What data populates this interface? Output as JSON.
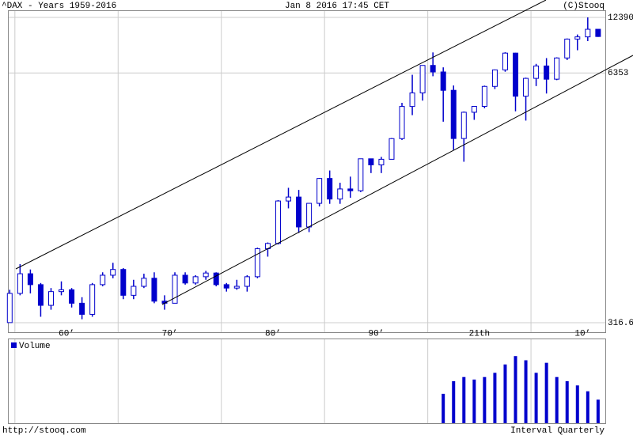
{
  "chart_data": [
    {
      "type": "candlestick",
      "title": "^DAX - Years 1959-2016",
      "subtitle": "Jan 8 2016 17:45 CET",
      "source": "(C)Stooq",
      "color": "#0000cc",
      "log_scale": true,
      "grid": true,
      "x": [
        1959,
        1960,
        1961,
        1962,
        1963,
        1964,
        1965,
        1966,
        1967,
        1968,
        1969,
        1970,
        1971,
        1972,
        1973,
        1974,
        1975,
        1976,
        1977,
        1978,
        1979,
        1980,
        1981,
        1982,
        1983,
        1984,
        1985,
        1986,
        1987,
        1988,
        1989,
        1990,
        1991,
        1992,
        1993,
        1994,
        1995,
        1996,
        1997,
        1998,
        1999,
        2000,
        2001,
        2002,
        2003,
        2004,
        2005,
        2006,
        2007,
        2008,
        2009,
        2010,
        2011,
        2012,
        2013,
        2014,
        2015,
        2016
      ],
      "open": [
        317,
        450,
        570,
        500,
        390,
        460,
        470,
        400,
        350,
        500,
        560,
        600,
        440,
        490,
        540,
        410,
        400,
        560,
        510,
        550,
        575,
        500,
        480,
        490,
        550,
        770,
        820,
        1366,
        1432,
        1000,
        1328,
        1790,
        1398,
        1578,
        1545,
        2267,
        2107,
        2254,
        2889,
        4250,
        5002,
        6958,
        6434,
        5160,
        2893,
        3965,
        4256,
        5408,
        6597,
        8067,
        4810,
        5957,
        6914,
        5898,
        7612,
        9552,
        9806,
        10743
      ],
      "high": [
        470,
        640,
        600,
        510,
        480,
        520,
        480,
        430,
        510,
        580,
        650,
        610,
        530,
        570,
        580,
        440,
        580,
        580,
        560,
        590,
        580,
        510,
        530,
        560,
        780,
        830,
        1380,
        1600,
        1560,
        1330,
        1800,
        1970,
        1700,
        1830,
        2270,
        2270,
        2320,
        2910,
        4440,
        6220,
        6960,
        8136,
        6800,
        5470,
        4000,
        4260,
        5460,
        6630,
        8151,
        8100,
        6010,
        7090,
        7600,
        7670,
        9620,
        10090,
        12390,
        10760
      ],
      "low": [
        316.6,
        440,
        450,
        340,
        370,
        440,
        380,
        330,
        340,
        490,
        540,
        420,
        420,
        480,
        400,
        370,
        400,
        500,
        500,
        530,
        490,
        460,
        470,
        460,
        540,
        700,
        810,
        1250,
        930,
        940,
        1280,
        1320,
        1320,
        1420,
        1520,
        1910,
        1910,
        2250,
        2840,
        3830,
        4560,
        6110,
        3540,
        2520,
        2188,
        3620,
        4160,
        5240,
        6450,
        4010,
        3588,
        5430,
        4965,
        5830,
        7420,
        8350,
        9320,
        9800
      ],
      "close": [
        450,
        570,
        500,
        390,
        460,
        470,
        400,
        350,
        500,
        560,
        600,
        440,
        490,
        540,
        410,
        400,
        560,
        510,
        550,
        575,
        500,
        480,
        490,
        550,
        770,
        820,
        1366,
        1432,
        1000,
        1328,
        1790,
        1398,
        1578,
        1545,
        2267,
        2107,
        2254,
        2889,
        4250,
        5002,
        6958,
        6434,
        5160,
        2893,
        3965,
        4256,
        5408,
        6597,
        8067,
        4810,
        5957,
        6914,
        5898,
        7612,
        9552,
        9806,
        10743,
        9849
      ],
      "xlim": [
        1959.4,
        2017.2
      ],
      "xticks": [
        {
          "value": 1960,
          "label": "60’"
        },
        {
          "value": 1970,
          "label": "70’"
        },
        {
          "value": 1980,
          "label": "80’"
        },
        {
          "value": 1990,
          "label": "90’"
        },
        {
          "value": 2000,
          "label": "21th"
        },
        {
          "value": 2010,
          "label": "10’"
        }
      ],
      "ylim": [
        316.6,
        12390
      ],
      "yticks": [
        12390,
        6353,
        316.6
      ]
    },
    {
      "type": "bar",
      "ylim": [
        0,
        100
      ],
      "x": [
        1959,
        1960,
        1961,
        1962,
        1963,
        1964,
        1965,
        1966,
        1967,
        1968,
        1969,
        1970,
        1971,
        1972,
        1973,
        1974,
        1975,
        1976,
        1977,
        1978,
        1979,
        1980,
        1981,
        1982,
        1983,
        1984,
        1985,
        1986,
        1987,
        1988,
        1989,
        1990,
        1991,
        1992,
        1993,
        1994,
        1995,
        1996,
        1997,
        1998,
        1999,
        2000,
        2001,
        2002,
        2003,
        2004,
        2005,
        2006,
        2007,
        2008,
        2009,
        2010,
        2011,
        2012,
        2013,
        2014,
        2015,
        2016
      ],
      "series": [
        {
          "name": "Volume",
          "color": "#0000cc",
          "values": [
            null,
            null,
            null,
            null,
            null,
            null,
            null,
            null,
            null,
            null,
            null,
            null,
            null,
            null,
            null,
            null,
            null,
            null,
            null,
            null,
            null,
            null,
            null,
            null,
            null,
            null,
            null,
            null,
            null,
            null,
            null,
            null,
            null,
            null,
            null,
            null,
            null,
            null,
            null,
            null,
            null,
            null,
            35,
            50,
            55,
            52,
            55,
            60,
            70,
            80,
            75,
            60,
            72,
            55,
            50,
            45,
            38,
            28
          ]
        }
      ]
    }
  ],
  "footer": {
    "left": "http://stooq.com",
    "right": "Interval Quarterly"
  }
}
